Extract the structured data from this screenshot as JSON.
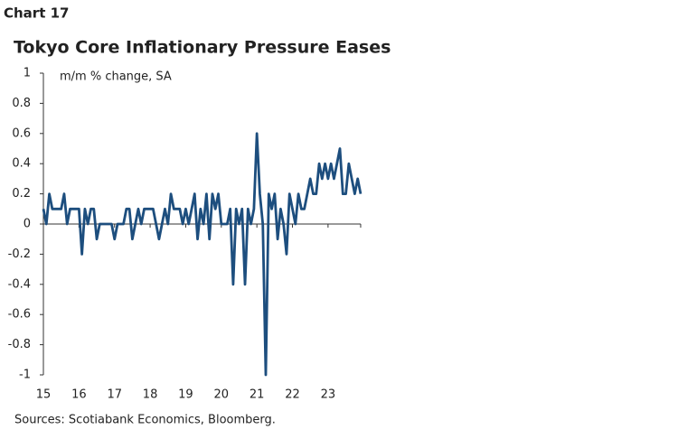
{
  "chart_number": "Chart 17",
  "chart_data": {
    "type": "line",
    "title": "Tokyo Core Inflationary Pressure Eases",
    "y_label": "m/m % change, SA",
    "source": "Sources: Scotiabank Economics, Bloomberg.",
    "color": "#1d4e7e",
    "categories": [
      "15",
      null,
      null,
      null,
      null,
      null,
      null,
      null,
      null,
      null,
      null,
      null,
      "16",
      null,
      null,
      null,
      null,
      null,
      null,
      null,
      null,
      null,
      null,
      null,
      "17",
      null,
      null,
      null,
      null,
      null,
      null,
      null,
      null,
      null,
      null,
      null,
      "18",
      null,
      null,
      null,
      null,
      null,
      null,
      null,
      null,
      null,
      null,
      null,
      "19",
      null,
      null,
      null,
      null,
      null,
      null,
      null,
      null,
      null,
      null,
      null,
      "20",
      null,
      null,
      null,
      null,
      null,
      null,
      null,
      null,
      null,
      null,
      null,
      "21",
      null,
      null,
      null,
      null,
      null,
      null,
      null,
      null,
      null,
      null,
      null,
      "22",
      null,
      null,
      null,
      null,
      null,
      null,
      null,
      null,
      null,
      null,
      null,
      "23",
      null,
      null,
      null,
      null,
      null,
      null,
      null,
      null,
      null,
      null,
      null
    ],
    "values": [
      0.1,
      0,
      0.2,
      0.1,
      0.1,
      0.1,
      0.1,
      0.2,
      0,
      0.1,
      0.1,
      0.1,
      0.1,
      -0.2,
      0.1,
      0,
      0.1,
      0.1,
      -0.1,
      0,
      0,
      0,
      0,
      0,
      -0.1,
      0,
      0,
      0,
      0.1,
      0.1,
      -0.1,
      0,
      0.1,
      0,
      0.1,
      0.1,
      0.1,
      0.1,
      0,
      -0.1,
      0,
      0.1,
      0,
      0.2,
      0.1,
      0.1,
      0.1,
      0,
      0.1,
      0,
      0.1,
      0.2,
      -0.1,
      0.1,
      0,
      0.2,
      -0.1,
      0.2,
      0.1,
      0.2,
      0,
      0,
      0,
      0.1,
      -0.4,
      0.1,
      0,
      0.1,
      -0.4,
      0.1,
      0,
      0.1,
      0.6,
      0.2,
      0,
      -1,
      0.2,
      0.1,
      0.2,
      -0.1,
      0.1,
      0,
      -0.2,
      0.2,
      0.1,
      0,
      0.2,
      0.1,
      0.1,
      0.2,
      0.3,
      0.2,
      0.2,
      0.4,
      0.3,
      0.4,
      0.3,
      0.4,
      0.3,
      0.4,
      0.5,
      0.2,
      0.2,
      0.4,
      0.3,
      0.2,
      0.3,
      0.2
    ],
    "ylim": [
      -1,
      1
    ],
    "yticks": [
      1,
      0.8,
      0.6,
      0.4,
      0.2,
      0,
      -0.2,
      -0.4,
      -0.6,
      -0.8,
      -1
    ]
  }
}
